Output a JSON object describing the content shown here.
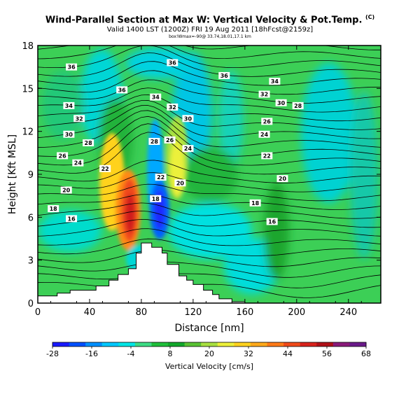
{
  "header": {
    "title": "Wind-Parallel Section at Max W: Vertical Velocity & Pot.Temp.",
    "title_mark": "(C)",
    "subtitle": "Valid 1400 LST (1200Z) FRI 19 Aug 2011 [18hFcst@2159z]",
    "subsubtitle": "box!Wmax=-90@ 33.74,18.01,17.1 km"
  },
  "chart_data": {
    "type": "heatmap",
    "title": "Wind-Parallel Section at Max W: Vertical Velocity & Pot.Temp.",
    "xlabel": "Distance [nm]",
    "ylabel": "Height [Kft MSL]",
    "xlim": [
      0,
      265
    ],
    "ylim": [
      0,
      18
    ],
    "xticks": [
      0,
      40,
      80,
      120,
      160,
      200,
      240
    ],
    "yticks": [
      0,
      3,
      6,
      9,
      12,
      15,
      18
    ],
    "colorbar": {
      "label": "Vertical Velocity [cm/s]",
      "ticks": [
        -28,
        -16,
        -4,
        8,
        20,
        32,
        44,
        56,
        68
      ],
      "colors": [
        "#1a1aff",
        "#0050ff",
        "#0090ff",
        "#00c8ff",
        "#00e6e6",
        "#3ddc84",
        "#1fbf3a",
        "#11a82a",
        "#59c233",
        "#a8e040",
        "#ecf03a",
        "#ffd21f",
        "#ffaa1c",
        "#ff7a18",
        "#f04a1a",
        "#d8231c",
        "#b01018",
        "#8a1a7a",
        "#6a1a8a"
      ]
    },
    "contour_labels": [
      {
        "x": 26,
        "y": 16.5,
        "v": "36"
      },
      {
        "x": 104,
        "y": 16.8,
        "v": "36"
      },
      {
        "x": 144,
        "y": 15.9,
        "v": "36"
      },
      {
        "x": 65,
        "y": 14.9,
        "v": "36"
      },
      {
        "x": 183,
        "y": 15.5,
        "v": "34"
      },
      {
        "x": 24,
        "y": 13.8,
        "v": "34"
      },
      {
        "x": 91,
        "y": 14.4,
        "v": "34"
      },
      {
        "x": 104,
        "y": 13.7,
        "v": "32"
      },
      {
        "x": 175,
        "y": 14.6,
        "v": "32"
      },
      {
        "x": 188,
        "y": 14.0,
        "v": "30"
      },
      {
        "x": 32,
        "y": 12.9,
        "v": "32"
      },
      {
        "x": 116,
        "y": 12.9,
        "v": "30"
      },
      {
        "x": 201,
        "y": 13.8,
        "v": "28"
      },
      {
        "x": 24,
        "y": 11.8,
        "v": "30"
      },
      {
        "x": 177,
        "y": 12.7,
        "v": "26"
      },
      {
        "x": 39,
        "y": 11.2,
        "v": "28"
      },
      {
        "x": 90,
        "y": 11.3,
        "v": "28"
      },
      {
        "x": 102,
        "y": 11.4,
        "v": "26"
      },
      {
        "x": 175,
        "y": 11.8,
        "v": "24"
      },
      {
        "x": 19,
        "y": 10.3,
        "v": "26"
      },
      {
        "x": 116,
        "y": 10.8,
        "v": "24"
      },
      {
        "x": 31,
        "y": 9.8,
        "v": "24"
      },
      {
        "x": 177,
        "y": 10.3,
        "v": "22"
      },
      {
        "x": 52,
        "y": 9.4,
        "v": "22"
      },
      {
        "x": 95,
        "y": 8.8,
        "v": "22"
      },
      {
        "x": 110,
        "y": 8.4,
        "v": "20"
      },
      {
        "x": 189,
        "y": 8.7,
        "v": "20"
      },
      {
        "x": 22,
        "y": 7.9,
        "v": "20"
      },
      {
        "x": 91,
        "y": 7.3,
        "v": "18"
      },
      {
        "x": 168,
        "y": 7.0,
        "v": "18"
      },
      {
        "x": 12,
        "y": 6.6,
        "v": "18"
      },
      {
        "x": 26,
        "y": 5.9,
        "v": "16"
      },
      {
        "x": 181,
        "y": 5.7,
        "v": "16"
      }
    ],
    "terrain": [
      [
        0,
        0.5
      ],
      [
        15,
        0.5
      ],
      [
        15,
        0.7
      ],
      [
        25,
        0.7
      ],
      [
        25,
        0.9
      ],
      [
        45,
        0.9
      ],
      [
        45,
        1.2
      ],
      [
        55,
        1.2
      ],
      [
        55,
        1.6
      ],
      [
        62,
        1.6
      ],
      [
        62,
        2.0
      ],
      [
        70,
        2.0
      ],
      [
        70,
        2.4
      ],
      [
        76,
        2.4
      ],
      [
        76,
        3.5
      ],
      [
        80,
        3.5
      ],
      [
        80,
        4.2
      ],
      [
        88,
        4.2
      ],
      [
        88,
        3.9
      ],
      [
        96,
        3.9
      ],
      [
        96,
        3.5
      ],
      [
        100,
        3.5
      ],
      [
        100,
        2.7
      ],
      [
        109,
        2.7
      ],
      [
        109,
        1.9
      ],
      [
        115,
        1.9
      ],
      [
        115,
        1.6
      ],
      [
        120,
        1.6
      ],
      [
        120,
        1.3
      ],
      [
        128,
        1.3
      ],
      [
        128,
        0.9
      ],
      [
        135,
        0.9
      ],
      [
        135,
        0.6
      ],
      [
        140,
        0.6
      ],
      [
        140,
        0.3
      ],
      [
        150,
        0.3
      ],
      [
        150,
        0.1
      ],
      [
        160,
        0.1
      ],
      [
        160,
        0
      ]
    ]
  }
}
